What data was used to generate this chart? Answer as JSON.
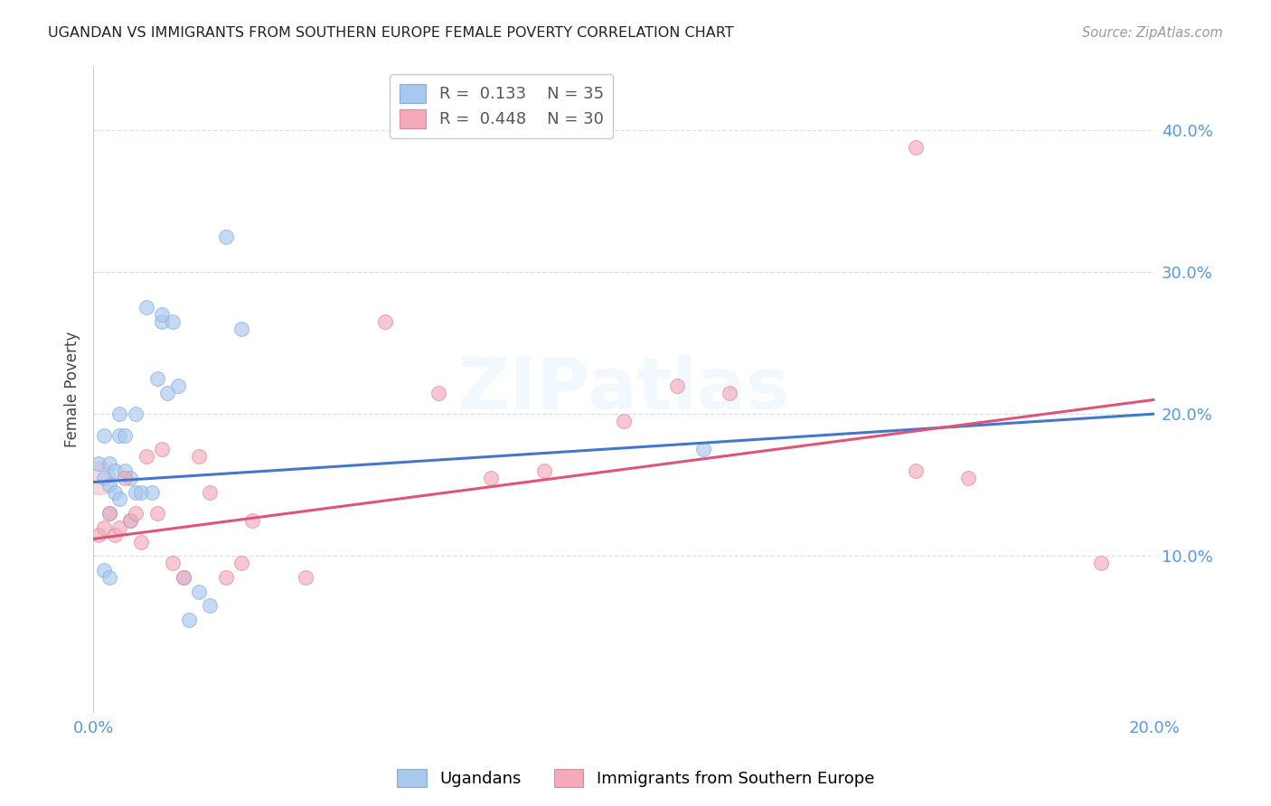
{
  "title": "UGANDAN VS IMMIGRANTS FROM SOUTHERN EUROPE FEMALE POVERTY CORRELATION CHART",
  "source": "Source: ZipAtlas.com",
  "ylabel": "Female Poverty",
  "xlim": [
    0.0,
    0.2
  ],
  "ylim": [
    -0.01,
    0.445
  ],
  "yticks": [
    0.1,
    0.2,
    0.3,
    0.4
  ],
  "ytick_labels": [
    "10.0%",
    "20.0%",
    "30.0%",
    "40.0%"
  ],
  "xticks": [
    0.0,
    0.05,
    0.1,
    0.15,
    0.2
  ],
  "xtick_labels": [
    "0.0%",
    "",
    "",
    "",
    "20.0%"
  ],
  "blue_color": "#A8C8EE",
  "blue_edge": "#88AADD",
  "pink_color": "#F4AABB",
  "pink_edge": "#DD8899",
  "blue_line_color": "#4477CC",
  "pink_line_color": "#DD5577",
  "tick_label_color": "#5599DD",
  "series1_label": "Ugandans",
  "series2_label": "Immigrants from Southern Europe",
  "R1": 0.133,
  "N1": 35,
  "R2": 0.448,
  "N2": 30,
  "blue_line_x": [
    0.0,
    0.2
  ],
  "blue_line_y": [
    0.152,
    0.2
  ],
  "pink_line_x": [
    0.0,
    0.2
  ],
  "pink_line_y": [
    0.112,
    0.21
  ],
  "ugandan_x": [
    0.001,
    0.002,
    0.002,
    0.003,
    0.003,
    0.003,
    0.004,
    0.004,
    0.005,
    0.005,
    0.006,
    0.006,
    0.007,
    0.007,
    0.008,
    0.008,
    0.009,
    0.01,
    0.011,
    0.012,
    0.013,
    0.013,
    0.014,
    0.015,
    0.016,
    0.017,
    0.018,
    0.02,
    0.022,
    0.025,
    0.028,
    0.115,
    0.002,
    0.003,
    0.005
  ],
  "ugandan_y": [
    0.165,
    0.155,
    0.185,
    0.165,
    0.15,
    0.13,
    0.16,
    0.145,
    0.185,
    0.2,
    0.185,
    0.16,
    0.125,
    0.155,
    0.145,
    0.2,
    0.145,
    0.275,
    0.145,
    0.225,
    0.265,
    0.27,
    0.215,
    0.265,
    0.22,
    0.085,
    0.055,
    0.075,
    0.065,
    0.325,
    0.26,
    0.175,
    0.09,
    0.085,
    0.14
  ],
  "ugandan_large_x": [
    0.001
  ],
  "ugandan_large_y": [
    0.16
  ],
  "southern_x": [
    0.001,
    0.002,
    0.003,
    0.004,
    0.005,
    0.006,
    0.007,
    0.008,
    0.009,
    0.01,
    0.012,
    0.013,
    0.015,
    0.017,
    0.02,
    0.022,
    0.025,
    0.028,
    0.03,
    0.04,
    0.055,
    0.065,
    0.075,
    0.085,
    0.1,
    0.11,
    0.12,
    0.155,
    0.165,
    0.19
  ],
  "southern_y": [
    0.115,
    0.12,
    0.13,
    0.115,
    0.12,
    0.155,
    0.125,
    0.13,
    0.11,
    0.17,
    0.13,
    0.175,
    0.095,
    0.085,
    0.17,
    0.145,
    0.085,
    0.095,
    0.125,
    0.085,
    0.265,
    0.215,
    0.155,
    0.16,
    0.195,
    0.22,
    0.215,
    0.16,
    0.155,
    0.095
  ],
  "southern_large_x": [
    0.001
  ],
  "southern_large_y": [
    0.155
  ],
  "pink_outlier_x": [
    0.155
  ],
  "pink_outlier_y": [
    0.388
  ]
}
